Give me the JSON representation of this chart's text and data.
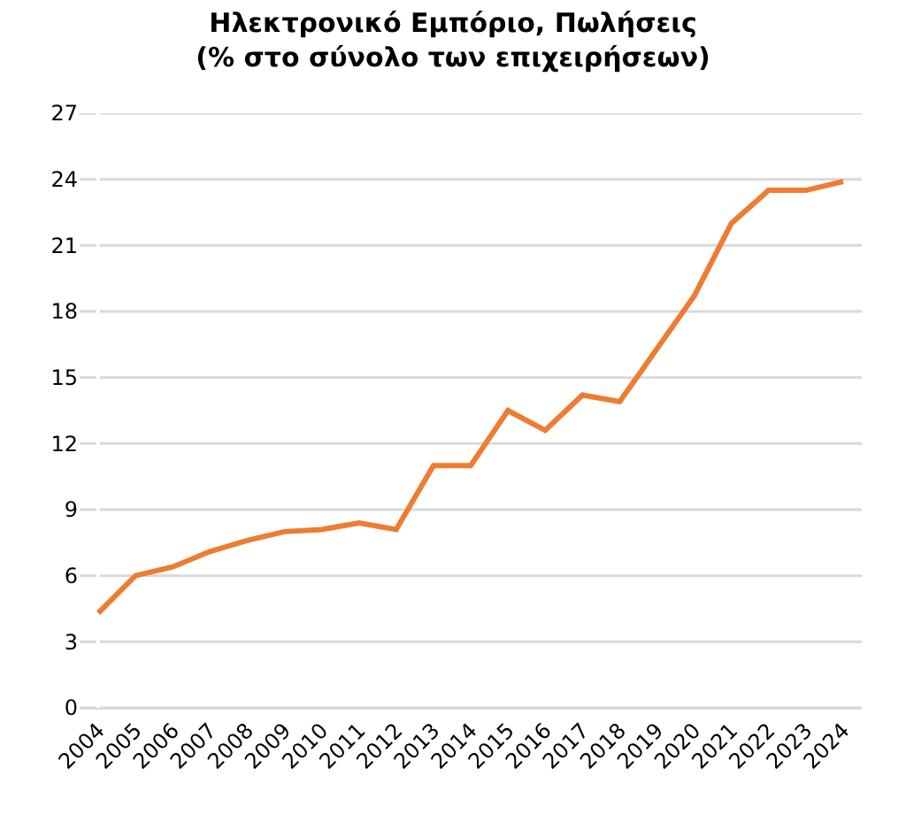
{
  "chart_data": {
    "type": "line",
    "title": "Ηλεκτρονικό Εμπόριο, Πωλήσεις\n(% στο σύνολο των επιχειρήσεων)",
    "categories": [
      "2004",
      "2005",
      "2006",
      "2007",
      "2008",
      "2009",
      "2010",
      "2011",
      "2012",
      "2013",
      "2014",
      "2015",
      "2016",
      "2017",
      "2018",
      "2019",
      "2020",
      "2021",
      "2022",
      "2023",
      "2024"
    ],
    "series": [
      {
        "color": "#ed7d31",
        "values": [
          4.3,
          6.0,
          6.4,
          7.1,
          7.6,
          8.0,
          8.1,
          8.4,
          8.1,
          11.0,
          11.0,
          13.5,
          12.6,
          14.2,
          13.9,
          16.3,
          18.7,
          22.0,
          23.5,
          23.5,
          23.9
        ]
      }
    ],
    "ylim": [
      0,
      27
    ],
    "yticks": [
      0,
      3,
      6,
      9,
      12,
      15,
      18,
      21,
      24,
      27
    ],
    "grid": "y",
    "marker": "none",
    "line_style": "solid"
  }
}
